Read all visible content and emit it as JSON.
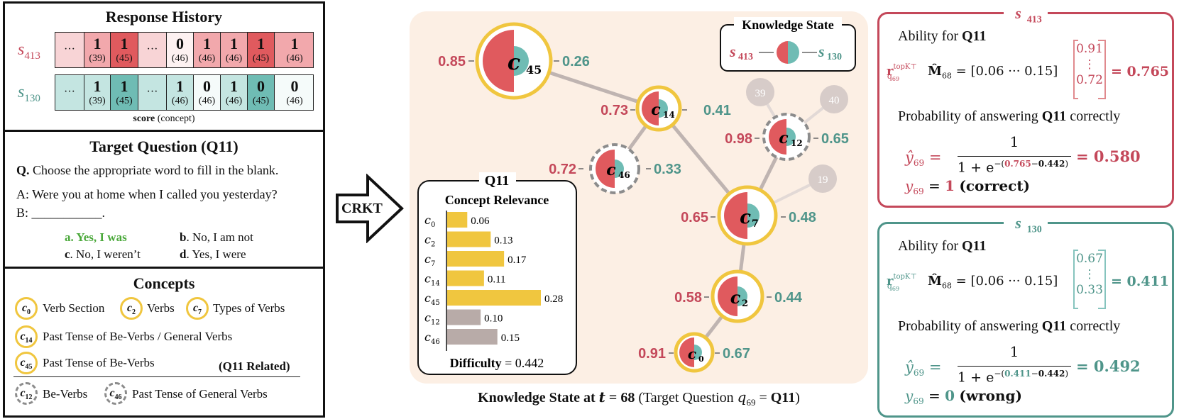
{
  "response_history": {
    "title": "Response History",
    "rows": [
      {
        "student": "s",
        "student_sub": "413",
        "cells": [
          {
            "text": "···"
          },
          {
            "score": "1",
            "concept": "(39)"
          },
          {
            "score": "1",
            "concept": "(45)"
          },
          {
            "text": "···"
          },
          {
            "score": "0",
            "concept": "(46)"
          },
          {
            "score": "1",
            "concept": "(46)"
          },
          {
            "score": "1",
            "concept": "(46)"
          },
          {
            "score": "1",
            "concept": "(45)"
          },
          {
            "score": "1",
            "concept": "(46)"
          }
        ]
      },
      {
        "student": "s",
        "student_sub": "130",
        "cells": [
          {
            "text": "···"
          },
          {
            "score": "1",
            "concept": "(39)"
          },
          {
            "score": "1",
            "concept": "(45)"
          },
          {
            "text": "···"
          },
          {
            "score": "1",
            "concept": "(46)"
          },
          {
            "score": "0",
            "concept": "(46)"
          },
          {
            "score": "1",
            "concept": "(46)"
          },
          {
            "score": "0",
            "concept": "(45)"
          },
          {
            "score": "0",
            "concept": "(46)"
          }
        ]
      }
    ],
    "caption_bold": "score",
    "caption_rest": " (concept)"
  },
  "target_question": {
    "title": "Target Question (Q11)",
    "q_label": "Q.",
    "q_text": " Choose the appropriate word to fill in the blank.",
    "line_a": "A: Were you at home when I called you yesterday?",
    "line_b": "B: ___________.",
    "options": [
      {
        "key": "a",
        "text": ". Yes, I was",
        "correct": true
      },
      {
        "key": "b",
        "text": ". No, I am not"
      },
      {
        "key": "c",
        "text": ". No, I weren’t"
      },
      {
        "key": "d",
        "text": ". Yes, I were"
      }
    ]
  },
  "concepts": {
    "title": "Concepts",
    "items": [
      {
        "id": "c",
        "sub": "0",
        "label": "Verb Section"
      },
      {
        "id": "c",
        "sub": "2",
        "label": "Verbs"
      },
      {
        "id": "c",
        "sub": "7",
        "label": "Types of Verbs"
      },
      {
        "id": "c",
        "sub": "14",
        "label": "Past Tense of Be-Verbs / General Verbs"
      },
      {
        "id": "c",
        "sub": "45",
        "label": "Past Tense of Be-Verbs"
      },
      {
        "id": "c",
        "sub": "12",
        "label": "Be-Verbs"
      },
      {
        "id": "c",
        "sub": "46",
        "label": "Past Tense of General Verbs"
      }
    ],
    "related_note": "(Q11 Related)"
  },
  "arrow_label": "CRKT",
  "graph": {
    "knowledge_state_title": "Knowledge State",
    "legend_left": "s",
    "legend_left_sub": "413",
    "legend_right": "s",
    "legend_right_sub": "130",
    "nodes": [
      {
        "id": "c",
        "sub": "45",
        "left": "0.85",
        "right": "0.26"
      },
      {
        "id": "c",
        "sub": "14",
        "left": "0.73",
        "right": "0.41"
      },
      {
        "id": "c",
        "sub": "46",
        "left": "0.72",
        "right": "0.33"
      },
      {
        "id": "c",
        "sub": "12",
        "left": "0.98",
        "right": "0.65"
      },
      {
        "id": "c",
        "sub": "7",
        "left": "0.65",
        "right": "0.48"
      },
      {
        "id": "c",
        "sub": "2",
        "left": "0.58",
        "right": "0.44"
      },
      {
        "id": "c",
        "sub": "0",
        "left": "0.91",
        "right": "0.67"
      }
    ],
    "grey_nodes": [
      "39",
      "40",
      "19"
    ],
    "caption_pre": "Knowledge State at ",
    "caption_t": "t",
    "caption_eq": " = 68",
    "caption_mid": " (Target Question ",
    "caption_q": "q",
    "caption_qsub": "69",
    "caption_eq2": " = ",
    "caption_q11": "Q11",
    "caption_end": ")"
  },
  "relevance": {
    "title": "Q11",
    "subtitle": "Concept Relevance",
    "difficulty_label": "Difficulty",
    "difficulty_value": " = 0.442"
  },
  "chart_data": {
    "type": "bar",
    "orientation": "horizontal",
    "title": "Concept Relevance",
    "categories": [
      "c0",
      "c2",
      "c7",
      "c14",
      "c45",
      "c12",
      "c46"
    ],
    "category_subs": [
      "0",
      "2",
      "7",
      "14",
      "45",
      "12",
      "46"
    ],
    "values": [
      0.06,
      0.13,
      0.17,
      0.11,
      0.28,
      0.1,
      0.15
    ],
    "value_labels": [
      "0.06",
      "0.13",
      "0.17",
      "0.11",
      "0.28",
      "0.10",
      "0.15"
    ],
    "colors": [
      "#f0c63f",
      "#f0c63f",
      "#f0c63f",
      "#f0c63f",
      "#f0c63f",
      "#b8aba8",
      "#b8aba8"
    ],
    "xlim": [
      0,
      0.28
    ]
  },
  "colors": {
    "red": "#e05a5e",
    "teal": "#6fbcb4",
    "gold": "#f0c63f",
    "grey": "#8c8c8c",
    "bg": "#fcefe4"
  },
  "student_413": {
    "title": "s",
    "title_sub": "413",
    "ability_label": "Ability for ",
    "ability_q": "Q11",
    "r_symbol": "r",
    "r_sup": "topK⊤",
    "r_sub": "q",
    "r_subsub": "69",
    "m_symbol": "M̂",
    "m_sub": "68",
    "row_vec": "0.06  ···  0.15",
    "col_top": "0.91",
    "col_dots": "⋮",
    "col_bottom": "0.72",
    "ability_result": "= 0.765",
    "prob_label": "Probability of answering ",
    "prob_q": "Q11",
    "prob_tail": " correctly",
    "yhat": "ŷ",
    "yhat_sub": "69",
    "num": "1",
    "den_pre": "1 + e",
    "exp_a": "0.765",
    "exp_b": "0.442",
    "prob_result": "= 0.580",
    "y": "y",
    "y_sub": "69",
    "y_value": "1",
    "y_word": "(correct)"
  },
  "student_130": {
    "title": "s",
    "title_sub": "130",
    "ability_label": "Ability for ",
    "ability_q": "Q11",
    "r_symbol": "r",
    "r_sup": "topK⊤",
    "r_sub": "q",
    "r_subsub": "69",
    "m_symbol": "M̂",
    "m_sub": "68",
    "row_vec": "0.06  ···  0.15",
    "col_top": "0.67",
    "col_dots": "⋮",
    "col_bottom": "0.33",
    "ability_result": "= 0.411",
    "prob_label": "Probability of answering ",
    "prob_q": "Q11",
    "prob_tail": " correctly",
    "yhat": "ŷ",
    "yhat_sub": "69",
    "num": "1",
    "den_pre": "1 + e",
    "exp_a": "0.411",
    "exp_b": "0.442",
    "prob_result": "= 0.492",
    "y": "y",
    "y_sub": "69",
    "y_value": "0",
    "y_word": "(wrong)"
  }
}
